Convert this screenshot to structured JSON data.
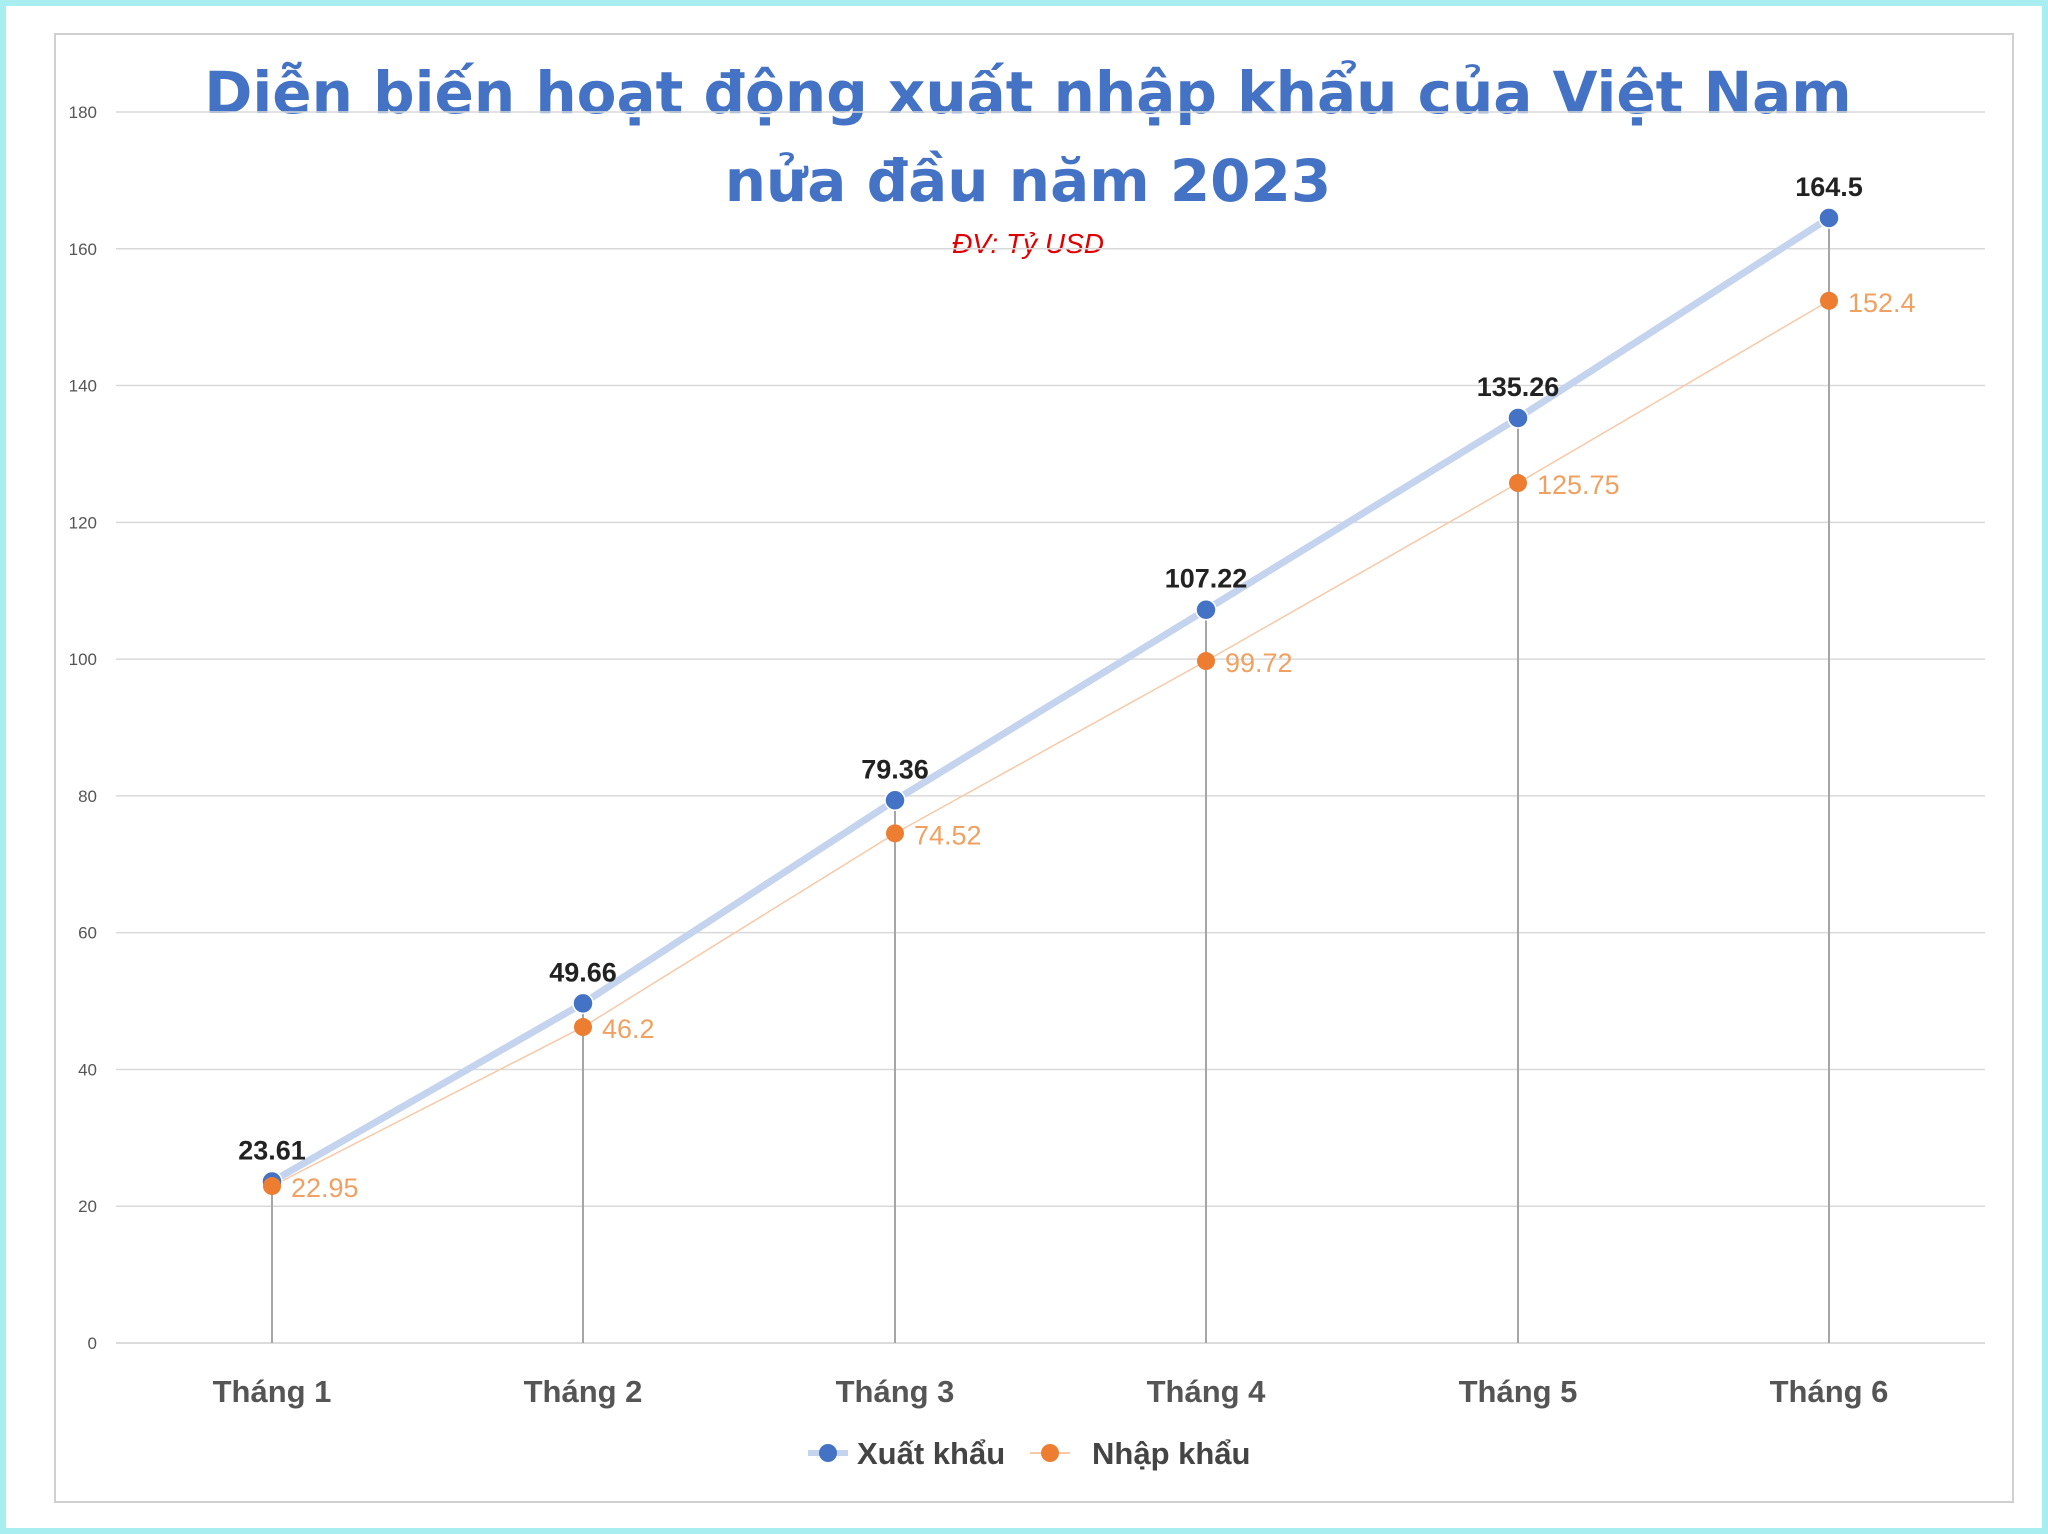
{
  "chart_data": {
    "type": "line",
    "title_line1": "Diễn biến hoạt động xuất nhập khẩu của Việt Nam",
    "title_line2": "nửa đầu năm 2023",
    "subtitle": "ĐV: Tỷ USD",
    "xlabel": "",
    "ylabel": "",
    "categories": [
      "Tháng 1",
      "Tháng 2",
      "Tháng 3",
      "Tháng 4",
      "Tháng 5",
      "Tháng 6"
    ],
    "ylim": [
      0,
      180
    ],
    "yticks": [
      0,
      20,
      40,
      60,
      80,
      100,
      120,
      140,
      160,
      180
    ],
    "grid": true,
    "drop_lines": true,
    "legend_position": "bottom",
    "series": [
      {
        "name": "Xuất khẩu",
        "color": "#4472c4",
        "line_color": "#c5d4ee",
        "values": [
          23.61,
          49.66,
          79.36,
          107.22,
          135.26,
          164.5
        ],
        "labels": [
          "23.61",
          "49.66",
          "79.36",
          "107.22",
          "135.26",
          "164.5"
        ]
      },
      {
        "name": "Nhập khẩu",
        "color": "#ed7d31",
        "line_color": "#f6c9a8",
        "values": [
          22.95,
          46.2,
          74.52,
          99.72,
          125.75,
          152.4
        ],
        "labels": [
          "22.95",
          "46.2",
          "74.52",
          "99.72",
          "125.75",
          "152.4"
        ]
      }
    ]
  }
}
